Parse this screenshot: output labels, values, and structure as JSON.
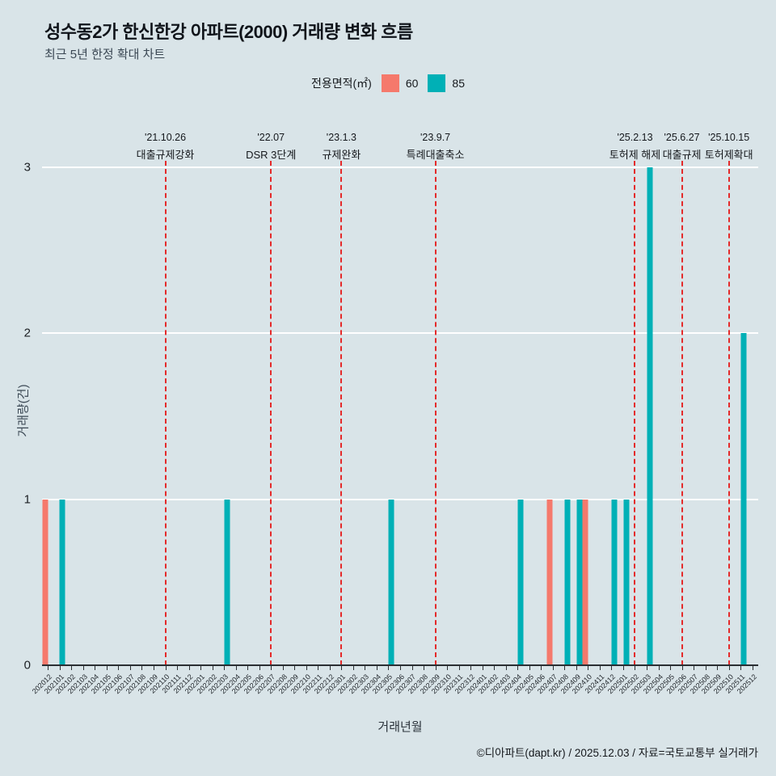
{
  "title": "성수동2가 한신한강 아파트(2000) 거래량 변화 흐름",
  "subtitle": "최근 5년 한정 확대 차트",
  "legend": {
    "label": "전용면적(㎡)",
    "items": [
      {
        "name": "60",
        "color": "#f5796c"
      },
      {
        "name": "85",
        "color": "#00b0b6"
      }
    ]
  },
  "footer": "©디아파트(dapt.kr) / 2025.12.03 / 자료=국토교통부 실거래가",
  "colors": {
    "background": "#d9e4e8",
    "gridline": "#ffffff",
    "event_line": "#e42a2a",
    "series_60": "#f5796c",
    "series_85": "#00b0b6"
  },
  "chart_data": {
    "type": "bar",
    "title": "성수동2가 한신한강 아파트(2000) 거래량 변화 흐름",
    "xlabel": "거래년월",
    "ylabel": "거래량(건)",
    "ylim": [
      0,
      3
    ],
    "yticks": [
      0,
      1,
      2,
      3
    ],
    "grid": true,
    "legend_position": "top",
    "categories": [
      "202012",
      "202101",
      "202102",
      "202103",
      "202104",
      "202105",
      "202106",
      "202107",
      "202108",
      "202109",
      "202110",
      "202111",
      "202112",
      "202201",
      "202202",
      "202203",
      "202204",
      "202205",
      "202206",
      "202207",
      "202208",
      "202209",
      "202210",
      "202211",
      "202212",
      "202301",
      "202302",
      "202303",
      "202304",
      "202305",
      "202306",
      "202307",
      "202308",
      "202309",
      "202310",
      "202311",
      "202312",
      "202401",
      "202402",
      "202403",
      "202404",
      "202405",
      "202406",
      "202407",
      "202408",
      "202409",
      "202410",
      "202411",
      "202412",
      "202501",
      "202502",
      "202503",
      "202504",
      "202505",
      "202506",
      "202507",
      "202508",
      "202509",
      "202510",
      "202511",
      "202512"
    ],
    "series": [
      {
        "name": "60",
        "color": "#f5796c",
        "points": {
          "202012": 1,
          "202407": 1,
          "202410": 1
        }
      },
      {
        "name": "85",
        "color": "#00b0b6",
        "points": {
          "202101": 1,
          "202203": 1,
          "202305": 1,
          "202404": 1,
          "202408": 1,
          "202409": 1,
          "202412": 1,
          "202501": 1,
          "202503": 3,
          "202511": 2
        }
      }
    ],
    "events": [
      {
        "date": "'21.10.26",
        "label": "대출규제강화",
        "month": "202110"
      },
      {
        "date": "'22.07",
        "label": "DSR 3단계",
        "month": "202207"
      },
      {
        "date": "'23.1.3",
        "label": "규제완화",
        "month": "202301"
      },
      {
        "date": "'23.9.7",
        "label": "특례대출축소",
        "month": "202309"
      },
      {
        "date": "'25.2.13",
        "label": "토허제 해제",
        "month": "202502"
      },
      {
        "date": "'25.6.27",
        "label": "대출규제",
        "month": "202506"
      },
      {
        "date": "'25.10.15",
        "label": "토허제확대",
        "month": "202510"
      }
    ]
  }
}
